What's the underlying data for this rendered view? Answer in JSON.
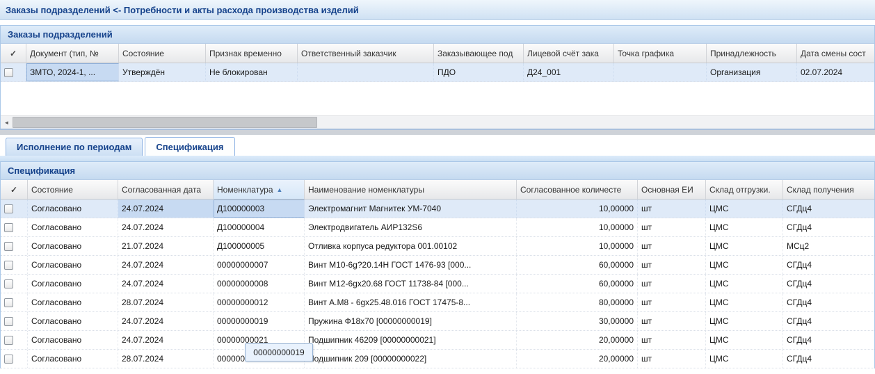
{
  "window_title": "Заказы подразделений <- Потребности и акты расхода производства изделий",
  "icons": {
    "check": "✓",
    "sort_asc": "▲",
    "scroll_left_arrow": "◄"
  },
  "colors": {
    "accent_blue": "#15428b",
    "selection_row": "#dfeaf8",
    "selection_cell": "#c7daf2"
  },
  "orders_panel": {
    "title": "Заказы подразделений",
    "columns": [
      "Документ (тип, №",
      "Состояние",
      "Признак временно",
      "Ответственный заказчик",
      "Заказывающее под",
      "Лицевой счёт зака",
      "Точка графика",
      "Принадлежность",
      "Дата смены сост"
    ],
    "rows": [
      {
        "selected": true,
        "cells": [
          "ЗМТО, 2024-1, ...",
          "Утверждён",
          "Не блокирован",
          "",
          "ПДО",
          "Д24_001",
          "",
          "Организация",
          "02.07.2024"
        ]
      }
    ]
  },
  "tabs": [
    {
      "label": "Исполнение по периодам",
      "active": false
    },
    {
      "label": "Спецификация",
      "active": true
    }
  ],
  "spec_panel": {
    "title": "Спецификация",
    "sort": {
      "column": "Номенклатура",
      "direction": "asc"
    },
    "columns": [
      "Состояние",
      "Согласованная дата",
      "Номенклатура",
      "Наименование номенклатуры",
      "Согласованное количесте",
      "Основная ЕИ",
      "Склад отгрузки.",
      "Склад получения"
    ],
    "rows": [
      {
        "selected": true,
        "cells": [
          "Согласовано",
          "24.07.2024",
          "Д100000003",
          "Электромагнит Магнитек УМ-7040",
          "10,00000",
          "шт",
          "ЦМС",
          "СГДц4"
        ]
      },
      {
        "cells": [
          "Согласовано",
          "24.07.2024",
          "Д100000004",
          "Электродвигатель АИР132S6",
          "10,00000",
          "шт",
          "ЦМС",
          "СГДц4"
        ]
      },
      {
        "cells": [
          "Согласовано",
          "21.07.2024",
          "Д100000005",
          "Отливка корпуса редуктора 001.00102",
          "10,00000",
          "шт",
          "ЦМС",
          "МСц2"
        ]
      },
      {
        "cells": [
          "Согласовано",
          "24.07.2024",
          "00000000007",
          "Винт М10-6g?20.14Н ГОСТ 1476-93 [000...",
          "60,00000",
          "шт",
          "ЦМС",
          "СГДц4"
        ]
      },
      {
        "cells": [
          "Согласовано",
          "24.07.2024",
          "00000000008",
          "Винт М12-6gx20.68 ГОСТ 11738-84 [000...",
          "60,00000",
          "шт",
          "ЦМС",
          "СГДц4"
        ]
      },
      {
        "cells": [
          "Согласовано",
          "28.07.2024",
          "00000000012",
          "Винт А.М8 - 6gx25.48.016 ГОСТ 17475-8...",
          "80,00000",
          "шт",
          "ЦМС",
          "СГДц4"
        ]
      },
      {
        "cells": [
          "Согласовано",
          "24.07.2024",
          "00000000019",
          "Пружина Ф18х70 [00000000019]",
          "30,00000",
          "шт",
          "ЦМС",
          "СГДц4"
        ]
      },
      {
        "cells": [
          "Согласовано",
          "24.07.2024",
          "00000000021",
          "Подшипник 46209 [00000000021]",
          "20,00000",
          "шт",
          "ЦМС",
          "СГДц4"
        ]
      },
      {
        "cells": [
          "Согласовано",
          "28.07.2024",
          "00000000022",
          "Подшипник 209 [00000000022]",
          "20,00000",
          "шт",
          "ЦМС",
          "СГДц4"
        ]
      }
    ]
  },
  "tooltip": {
    "text": "00000000019"
  }
}
